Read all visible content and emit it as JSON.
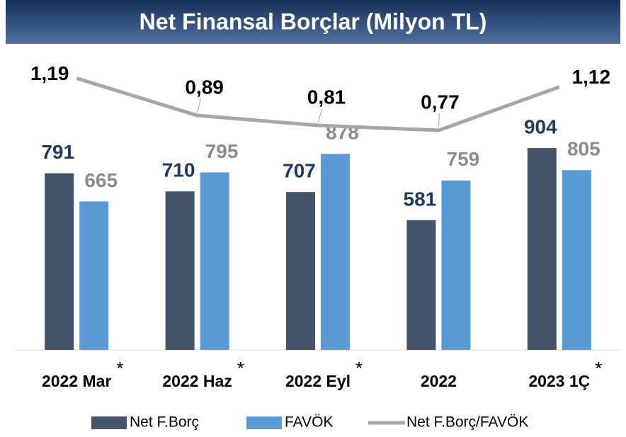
{
  "chart_data": {
    "type": "bar_line",
    "title": "Net Finansal Borçlar (Milyon TL)",
    "categories": [
      "2022 Mar",
      "2022 Haz",
      "2022 Eyl",
      "2022",
      "2023 1Ç"
    ],
    "footnote_marks": [
      "*",
      "*",
      "*",
      null,
      "*"
    ],
    "ylim": [
      0,
      1250
    ],
    "y2lim": [
      -1,
      1.25
    ],
    "series": [
      {
        "name": "Net F.Borç",
        "type": "bar",
        "color": "#44546a",
        "label_color": "#1f3a5f",
        "values": [
          791,
          710,
          707,
          581,
          904
        ]
      },
      {
        "name": "FAVÖK",
        "type": "bar",
        "color": "#5b9bd5",
        "label_color": "#8c8c8c",
        "values": [
          665,
          795,
          878,
          759,
          805
        ]
      },
      {
        "name": "Net F.Borç/FAVÖK",
        "type": "line",
        "axis": "y2",
        "color": "#a6a6a6",
        "label_color": "#000000",
        "values": [
          1.19,
          0.89,
          0.81,
          0.77,
          1.12
        ],
        "value_labels": [
          "1,19",
          "0,89",
          "0,81",
          "0,77",
          "1,12"
        ]
      }
    ],
    "legend": "bottom"
  }
}
